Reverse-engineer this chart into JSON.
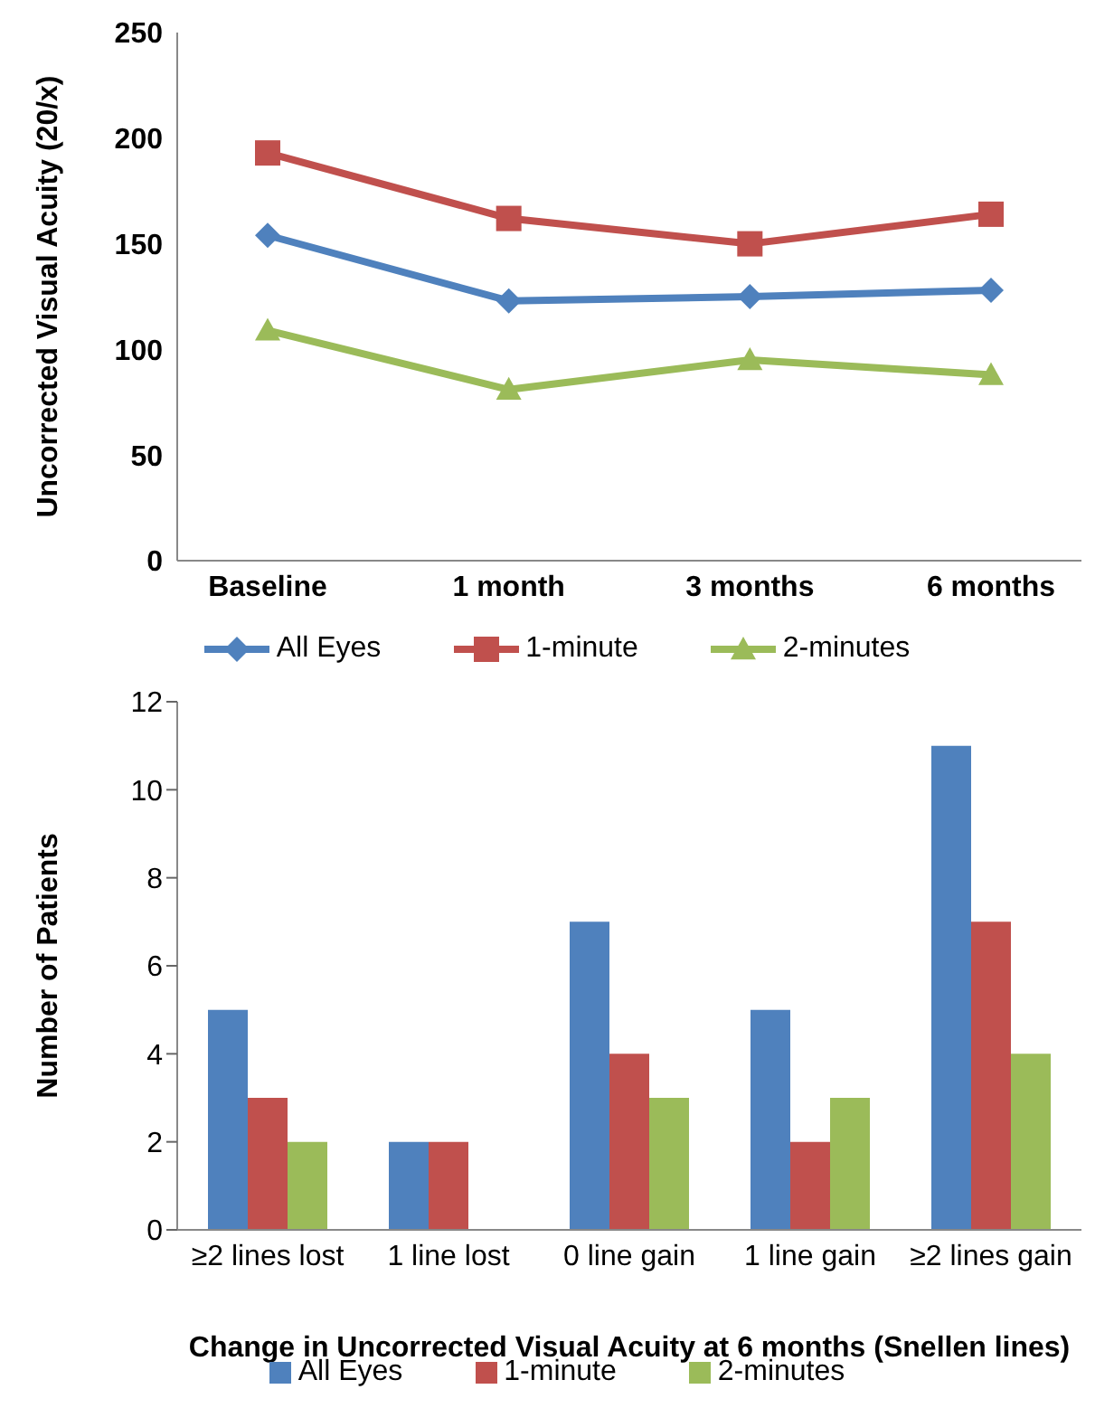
{
  "chart_data": [
    {
      "type": "line",
      "ylabel": "Uncorrected Visual Acuity (20/x)",
      "categories": [
        "Baseline",
        "1 month",
        "3 months",
        "6 months"
      ],
      "ylim": [
        0,
        250
      ],
      "yticks": [
        0,
        50,
        100,
        150,
        200,
        250
      ],
      "grid": false,
      "legend": "bottom",
      "series": [
        {
          "name": "All Eyes",
          "color": "#4f81bd",
          "marker": "diamond",
          "values": [
            154,
            123,
            125,
            128
          ]
        },
        {
          "name": "1-minute",
          "color": "#c0504d",
          "marker": "square",
          "values": [
            193,
            162,
            150,
            164
          ]
        },
        {
          "name": "2-minutes",
          "color": "#9bbb59",
          "marker": "triangle",
          "values": [
            109,
            81,
            95,
            88
          ]
        }
      ]
    },
    {
      "type": "bar",
      "xlabel": "Change in Uncorrected Visual Acuity at 6 months (Snellen lines)",
      "ylabel": "Number of Patients",
      "categories": [
        "≥2 lines lost",
        "1 line lost",
        "0 line gain",
        "1 line gain",
        "≥2 lines gain"
      ],
      "ylim": [
        0,
        12
      ],
      "yticks": [
        0,
        2,
        4,
        6,
        8,
        10,
        12
      ],
      "grid": false,
      "legend": "bottom",
      "series": [
        {
          "name": "All Eyes",
          "color": "#4f81bd",
          "values": [
            5,
            2,
            7,
            5,
            11
          ]
        },
        {
          "name": "1-minute",
          "color": "#c0504d",
          "values": [
            3,
            2,
            4,
            2,
            7
          ]
        },
        {
          "name": "2-minutes",
          "color": "#9bbb59",
          "values": [
            2,
            0,
            3,
            3,
            4
          ]
        }
      ]
    }
  ]
}
